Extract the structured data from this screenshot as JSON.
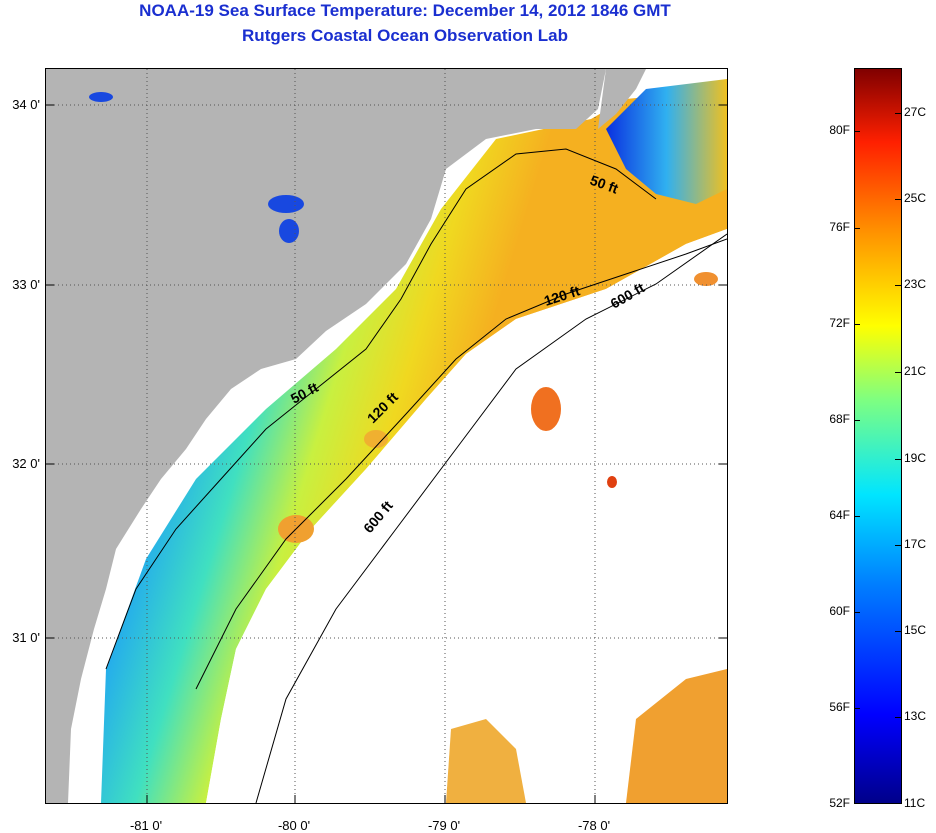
{
  "title": {
    "line1": "NOAA-19 Sea Surface Temperature:  December 14, 2012 1846 GMT",
    "line2": "Rutgers Coastal Ocean Observation Lab"
  },
  "map": {
    "latitude_labels": [
      "34 0'",
      "33 0'",
      "32 0'",
      "31 0'"
    ],
    "longitude_labels": [
      "-81 0'",
      "-80 0'",
      "-79 0'",
      "-78 0'"
    ],
    "contour_labels": [
      "50 ft",
      "50 ft",
      "120 ft",
      "120 ft",
      "600 ft",
      "600 ft"
    ],
    "colors": {
      "land": "#b4b4b4",
      "cloud_mask": "#ffffff",
      "cold": "#0a28e6",
      "mid": "#2fd0e0",
      "warm": "#f0e020",
      "hot": "#f08020"
    }
  },
  "colorbar": {
    "fahrenheit_labels": [
      "80F",
      "76F",
      "72F",
      "68F",
      "64F",
      "60F",
      "56F",
      "52F"
    ],
    "celsius_labels": [
      "27C",
      "25C",
      "23C",
      "21C",
      "19C",
      "17C",
      "15C",
      "13C",
      "11C"
    ],
    "range_celsius": [
      11,
      28
    ]
  }
}
